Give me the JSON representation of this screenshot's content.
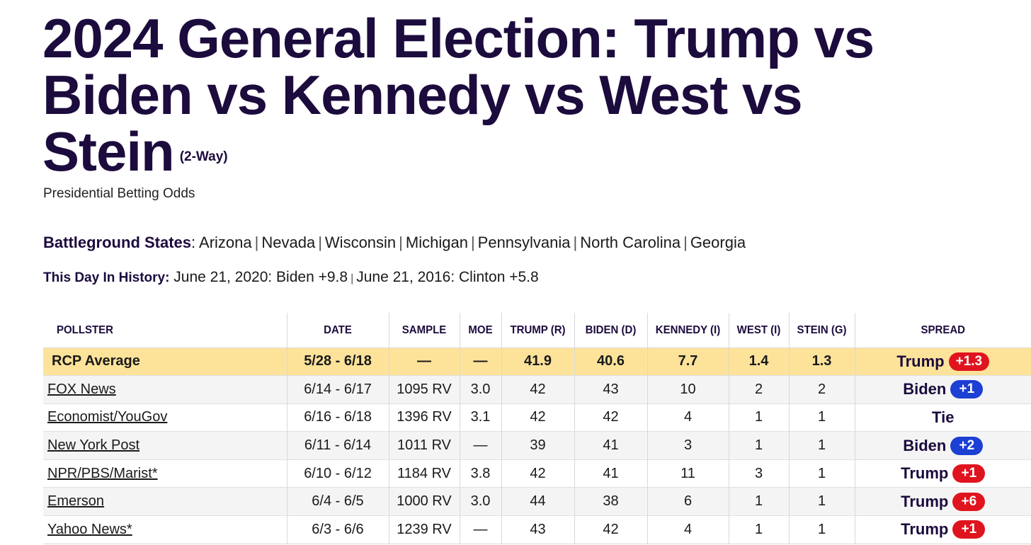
{
  "title": {
    "main": "2024 General Election: Trump vs Biden vs Kennedy vs West vs Stein",
    "tag": "(2-Way)"
  },
  "subtitle": "Presidential Betting Odds",
  "battleground": {
    "label": "Battleground States",
    "states": [
      "Arizona",
      "Nevada",
      "Wisconsin",
      "Michigan",
      "Pennsylvania",
      "North Carolina",
      "Georgia"
    ]
  },
  "history": {
    "label": "This Day In History:",
    "entries": [
      "June 21, 2020: Biden +9.8",
      "June 21, 2016: Clinton +5.8"
    ]
  },
  "table": {
    "headers": [
      "POLLSTER",
      "DATE",
      "SAMPLE",
      "MOE",
      "TRUMP (R)",
      "BIDEN (D)",
      "KENNEDY (I)",
      "WEST (I)",
      "STEIN (G)",
      "SPREAD"
    ],
    "average": {
      "pollster": "RCP Average",
      "date": "5/28 - 6/18",
      "sample": "—",
      "moe": "—",
      "trump": "41.9",
      "biden": "40.6",
      "kennedy": "7.7",
      "west": "1.4",
      "stein": "1.3",
      "spread_leader": "Trump",
      "spread_value": "+1.3",
      "spread_party": "r"
    },
    "rows": [
      {
        "pollster": "FOX News",
        "date": "6/14 - 6/17",
        "sample": "1095 RV",
        "moe": "3.0",
        "trump": "42",
        "biden": "43",
        "kennedy": "10",
        "west": "2",
        "stein": "2",
        "spread_leader": "Biden",
        "spread_value": "+1",
        "spread_party": "d"
      },
      {
        "pollster": "Economist/YouGov",
        "date": "6/16 - 6/18",
        "sample": "1396 RV",
        "moe": "3.1",
        "trump": "42",
        "biden": "42",
        "kennedy": "4",
        "west": "1",
        "stein": "1",
        "spread_leader": "Tie",
        "spread_value": "",
        "spread_party": ""
      },
      {
        "pollster": "New York Post",
        "date": "6/11 - 6/14",
        "sample": "1011 RV",
        "moe": "—",
        "trump": "39",
        "biden": "41",
        "kennedy": "3",
        "west": "1",
        "stein": "1",
        "spread_leader": "Biden",
        "spread_value": "+2",
        "spread_party": "d"
      },
      {
        "pollster": "NPR/PBS/Marist*",
        "date": "6/10 - 6/12",
        "sample": "1184 RV",
        "moe": "3.8",
        "trump": "42",
        "biden": "41",
        "kennedy": "11",
        "west": "3",
        "stein": "1",
        "spread_leader": "Trump",
        "spread_value": "+1",
        "spread_party": "r"
      },
      {
        "pollster": "Emerson",
        "date": "6/4 - 6/5",
        "sample": "1000 RV",
        "moe": "3.0",
        "trump": "44",
        "biden": "38",
        "kennedy": "6",
        "west": "1",
        "stein": "1",
        "spread_leader": "Trump",
        "spread_value": "+6",
        "spread_party": "r"
      },
      {
        "pollster": "Yahoo News*",
        "date": "6/3 - 6/6",
        "sample": "1239 RV",
        "moe": "—",
        "trump": "43",
        "biden": "42",
        "kennedy": "4",
        "west": "1",
        "stein": "1",
        "spread_leader": "Trump",
        "spread_value": "+1",
        "spread_party": "r"
      }
    ]
  },
  "colors": {
    "title": "#1c0b3d",
    "average_row": "#fde39a",
    "republican": "#e0141e",
    "democrat": "#1c3fd4"
  }
}
